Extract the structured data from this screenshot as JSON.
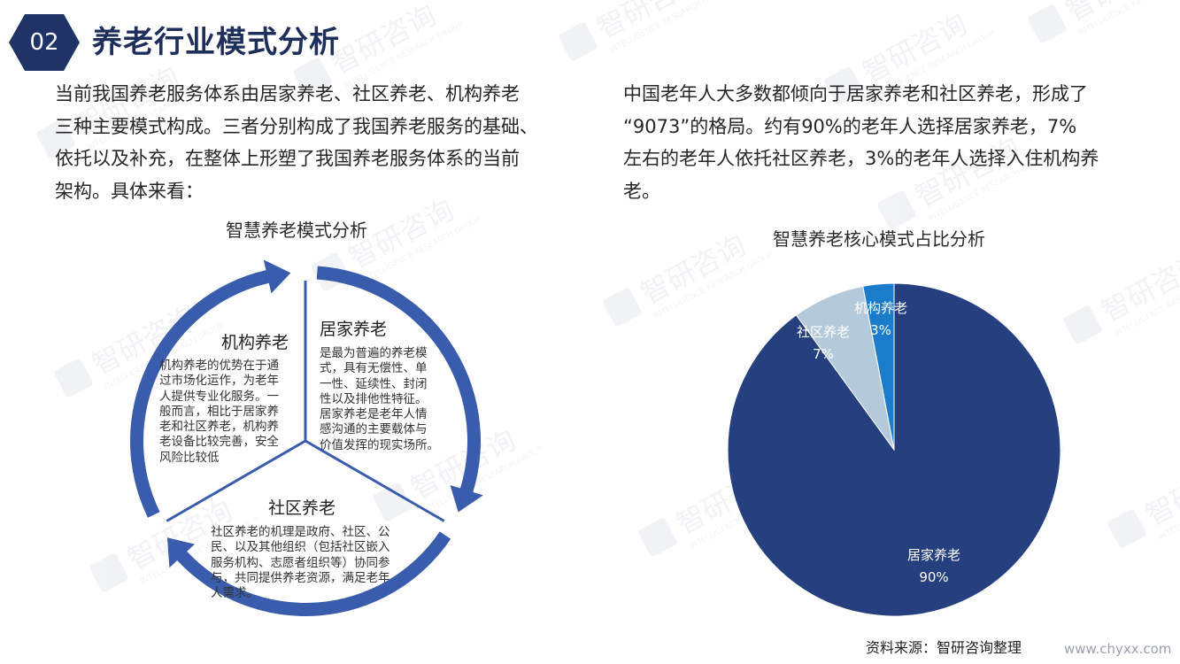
{
  "header": {
    "number": "02",
    "title": "养老行业模式分析"
  },
  "intro_left": {
    "lines": [
      "当前我国养老服务体系由居家养老、社区养老、机构养老",
      "三种主要模式构成。三者分别构成了我国养老服务的基础、",
      "依托以及补充，在整体上形塑了我国养老服务体系的当前",
      "架构。具体来看："
    ]
  },
  "intro_right": {
    "lines": [
      "中国老年人大多数都倾向于居家养老和社区养老，形成了",
      "“9073”的格局。约有90%的老年人选择居家养老，7%",
      "左右的老年人依托社区养老，3%的老年人选择入住机构养",
      "老。"
    ]
  },
  "cycle": {
    "title": "智慧养老模式分析",
    "segments": [
      {
        "title": "居家养老",
        "lines": [
          "是最为普遍的养老模",
          "式，具有无偿性、单",
          "一性、延续性、封闭",
          "性以及排他性特征。",
          "居家养老是老年人情",
          "感沟通的主要载体与",
          "价值发挥的现实场所。"
        ]
      },
      {
        "title": "机构养老",
        "lines": [
          "机构养老的优势在于通",
          "过市场化运作，为老年",
          "人提供专业化服务。一",
          "般而言，相比于居家养",
          "老和社区养老，机构养",
          "老设备比较完善，安全",
          "风险比较低"
        ]
      },
      {
        "title": "社区养老",
        "lines": [
          "社区养老的机理是政府、社区、公",
          "民、以及其他组织（包括社区嵌入",
          "服务机构、志愿者组织等）协同参",
          "与，共同提供养老资源，满足老年",
          "人需求。"
        ]
      }
    ],
    "colors": {
      "arrow": "#3a5cad"
    }
  },
  "chart_data": {
    "type": "pie",
    "title": "智慧养老核心模式占比分析",
    "slices": [
      {
        "label": "居家养老",
        "value": 90,
        "display": "90%",
        "color": "#253f7f"
      },
      {
        "label": "社区养老",
        "value": 7,
        "display": "7%",
        "color": "#b4c9d9"
      },
      {
        "label": "机构养老",
        "value": 3,
        "display": "3%",
        "color": "#1c7ccc"
      }
    ]
  },
  "footer": {
    "source": "资料来源：智研咨询整理",
    "site": "www.chyxx.com"
  },
  "watermark": {
    "brand": "智研咨询",
    "sub": "INTELLIGENCE RESEARCH GROUP"
  }
}
